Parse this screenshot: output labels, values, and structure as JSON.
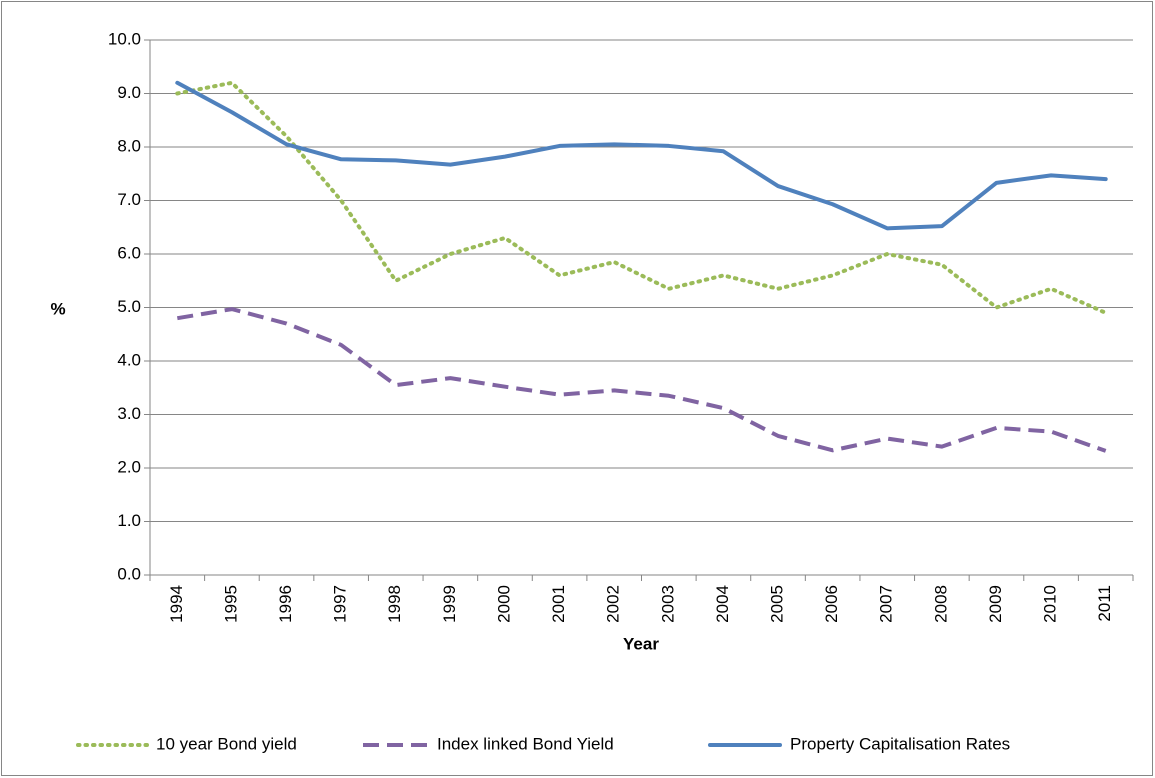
{
  "chart_data": {
    "type": "line",
    "x_label": "Year",
    "y_label": "%",
    "categories": [
      "1994",
      "1995",
      "1996",
      "1997",
      "1998",
      "1999",
      "2000",
      "2001",
      "2002",
      "2003",
      "2004",
      "2005",
      "2006",
      "2007",
      "2008",
      "2009",
      "2010",
      "2011"
    ],
    "series": [
      {
        "name": "10 year Bond yield",
        "color": "#9bbb59",
        "dash": "dotted",
        "values": [
          9.0,
          9.2,
          8.2,
          7.0,
          5.5,
          6.0,
          6.3,
          5.6,
          5.85,
          5.35,
          5.6,
          5.35,
          5.6,
          6.0,
          5.8,
          5.0,
          5.35,
          4.9
        ]
      },
      {
        "name": "Index linked Bond Yield",
        "color": "#8064a2",
        "dash": "dashed",
        "values": [
          4.8,
          4.97,
          4.7,
          4.3,
          3.55,
          3.68,
          3.52,
          3.37,
          3.45,
          3.35,
          3.12,
          2.6,
          2.33,
          2.55,
          2.4,
          2.75,
          2.68,
          2.32
        ]
      },
      {
        "name": "Property Capitalisation Rates",
        "color": "#4f81bd",
        "dash": "solid",
        "values": [
          9.2,
          8.65,
          8.05,
          7.77,
          7.75,
          7.67,
          7.82,
          8.02,
          8.05,
          8.02,
          7.92,
          7.27,
          6.93,
          6.48,
          6.52,
          7.33,
          7.47,
          7.4
        ]
      }
    ],
    "ylim": [
      0,
      10
    ],
    "yticks": [
      {
        "value": 0,
        "label": "0.0"
      },
      {
        "value": 1,
        "label": "1.0"
      },
      {
        "value": 2,
        "label": "2.0"
      },
      {
        "value": 3,
        "label": "3.0"
      },
      {
        "value": 4,
        "label": "4.0"
      },
      {
        "value": 5,
        "label": "5.0"
      },
      {
        "value": 6,
        "label": "6.0"
      },
      {
        "value": 7,
        "label": "7.0"
      },
      {
        "value": 8,
        "label": "8.0"
      },
      {
        "value": 9,
        "label": "9.0"
      },
      {
        "value": 10,
        "label": "10.0"
      }
    ],
    "grid": true,
    "legend": "bottom"
  }
}
